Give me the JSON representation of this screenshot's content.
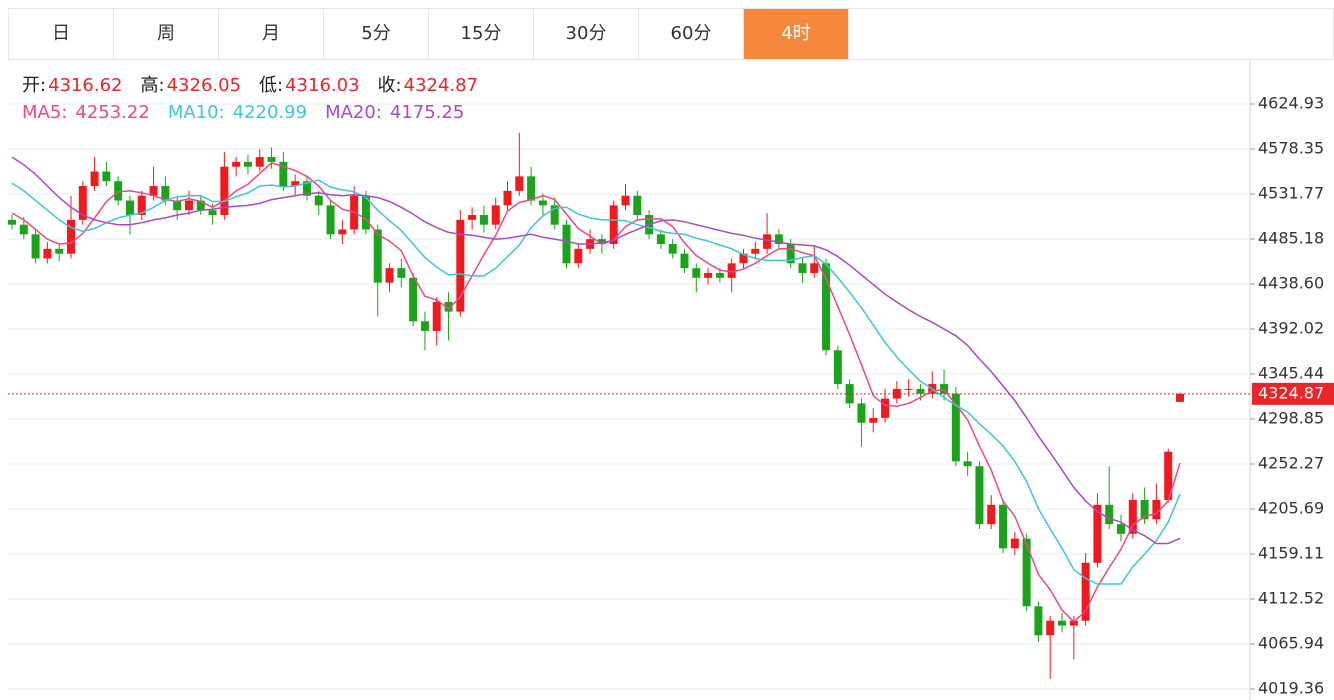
{
  "tabs": {
    "items": [
      "日",
      "周",
      "月",
      "5分",
      "15分",
      "30分",
      "60分",
      "4时"
    ],
    "active": 7
  },
  "chart_data": {
    "type": "candlestick",
    "ohlc_labels": [
      "开:",
      "高:",
      "低:",
      "收:"
    ],
    "up_color": "#f0191e",
    "down_color": "#1ca31c",
    "last_color": "#e8262a",
    "ylim": [
      4007.97,
      4670.47
    ],
    "yticks": [
      4624.93,
      4578.35,
      4531.77,
      4485.18,
      {
        "value": 4438.6,
        "label": "4438.60"
      },
      4392.02,
      4345.44,
      4298.85,
      4252.27,
      4205.69,
      4159.11,
      4112.52,
      4065.94,
      4019.36
    ],
    "grid": true,
    "ohlc": [
      [
        4505,
        4510,
        4495,
        4500
      ],
      [
        4500,
        4508,
        4485,
        4490
      ],
      [
        4490,
        4495,
        4460,
        4465
      ],
      [
        4465,
        4482,
        4460,
        4475
      ],
      [
        4475,
        4480,
        4462,
        4470
      ],
      [
        4470,
        4530,
        4465,
        4505
      ],
      [
        4505,
        4545,
        4500,
        4540
      ],
      [
        4540,
        4570,
        4535,
        4555
      ],
      [
        4555,
        4565,
        4540,
        4545
      ],
      [
        4545,
        4550,
        4520,
        4525
      ],
      [
        4525,
        4530,
        4490,
        4510
      ],
      [
        4510,
        4535,
        4505,
        4530
      ],
      [
        4530,
        4560,
        4525,
        4540
      ],
      [
        4540,
        4550,
        4520,
        4525
      ],
      [
        4525,
        4530,
        4505,
        4515
      ],
      [
        4515,
        4535,
        4510,
        4525
      ],
      [
        4525,
        4530,
        4510,
        4515
      ],
      [
        4515,
        4522,
        4500,
        4510
      ],
      [
        4510,
        4575,
        4505,
        4560
      ],
      [
        4560,
        4570,
        4550,
        4565
      ],
      [
        4565,
        4572,
        4552,
        4560
      ],
      [
        4560,
        4578,
        4555,
        4570
      ],
      [
        4570,
        4580,
        4558,
        4565
      ],
      [
        4565,
        4575,
        4535,
        4540
      ],
      [
        4540,
        4552,
        4530,
        4545
      ],
      [
        4545,
        4550,
        4525,
        4530
      ],
      [
        4530,
        4535,
        4510,
        4520
      ],
      [
        4520,
        4525,
        4485,
        4490
      ],
      [
        4490,
        4505,
        4480,
        4495
      ],
      [
        4495,
        4540,
        4490,
        4530
      ],
      [
        4530,
        4535,
        4490,
        4495
      ],
      [
        4495,
        4500,
        4405,
        4440
      ],
      [
        4440,
        4460,
        4430,
        4455
      ],
      [
        4455,
        4465,
        4435,
        4445
      ],
      [
        4445,
        4450,
        4395,
        4400
      ],
      [
        4400,
        4410,
        4370,
        4390
      ],
      [
        4390,
        4425,
        4375,
        4420
      ],
      [
        4420,
        4430,
        4380,
        4410
      ],
      [
        4410,
        4515,
        4405,
        4505
      ],
      [
        4505,
        4518,
        4495,
        4510
      ],
      [
        4510,
        4520,
        4492,
        4500
      ],
      [
        4500,
        4528,
        4495,
        4520
      ],
      [
        4520,
        4545,
        4515,
        4535
      ],
      [
        4535,
        4595,
        4530,
        4550
      ],
      [
        4550,
        4560,
        4520,
        4525
      ],
      [
        4525,
        4532,
        4510,
        4520
      ],
      [
        4520,
        4528,
        4495,
        4500
      ],
      [
        4500,
        4505,
        4455,
        4460
      ],
      [
        4460,
        4480,
        4455,
        4475
      ],
      [
        4475,
        4495,
        4470,
        4485
      ],
      [
        4485,
        4490,
        4470,
        4480
      ],
      [
        4480,
        4525,
        4475,
        4520
      ],
      [
        4520,
        4542,
        4515,
        4530
      ],
      [
        4530,
        4535,
        4505,
        4510
      ],
      [
        4510,
        4515,
        4485,
        4490
      ],
      [
        4490,
        4495,
        4475,
        4480
      ],
      [
        4480,
        4485,
        4465,
        4470
      ],
      [
        4470,
        4475,
        4450,
        4455
      ],
      [
        4455,
        4460,
        4430,
        4445
      ],
      [
        4445,
        4455,
        4438,
        4450
      ],
      [
        4450,
        4455,
        4440,
        4445
      ],
      [
        4445,
        4465,
        4430,
        4460
      ],
      [
        4460,
        4475,
        4455,
        4470
      ],
      [
        4470,
        4482,
        4465,
        4475
      ],
      [
        4475,
        4512,
        4470,
        4490
      ],
      [
        4490,
        4495,
        4475,
        4480
      ],
      [
        4480,
        4485,
        4455,
        4460
      ],
      [
        4460,
        4465,
        4440,
        4450
      ],
      [
        4450,
        4478,
        4445,
        4460
      ],
      [
        4460,
        4465,
        4365,
        4370
      ],
      [
        4370,
        4375,
        4330,
        4335
      ],
      [
        4335,
        4340,
        4310,
        4315
      ],
      [
        4315,
        4320,
        4270,
        4295
      ],
      [
        4295,
        4310,
        4285,
        4300
      ],
      [
        4300,
        4330,
        4295,
        4320
      ],
      [
        4320,
        4338,
        4315,
        4330
      ],
      [
        4330,
        4340,
        4322,
        4330
      ],
      [
        4330,
        4335,
        4318,
        4325
      ],
      [
        4325,
        4348,
        4320,
        4335
      ],
      [
        4335,
        4350,
        4318,
        4325
      ],
      [
        4325,
        4332,
        4250,
        4255
      ],
      [
        4255,
        4265,
        4240,
        4250
      ],
      [
        4250,
        4255,
        4185,
        4190
      ],
      [
        4190,
        4220,
        4185,
        4210
      ],
      [
        4210,
        4215,
        4160,
        4165
      ],
      [
        4165,
        4182,
        4158,
        4175
      ],
      [
        4175,
        4180,
        4100,
        4105
      ],
      [
        4105,
        4110,
        4068,
        4075
      ],
      [
        4075,
        4095,
        4030,
        4090
      ],
      [
        4090,
        4098,
        4078,
        4085
      ],
      [
        4085,
        4095,
        4050,
        4090
      ],
      [
        4090,
        4160,
        4085,
        4150
      ],
      [
        4150,
        4222,
        4145,
        4210
      ],
      [
        4210,
        4250,
        4185,
        4190
      ],
      [
        4190,
        4200,
        4172,
        4180
      ],
      [
        4180,
        4222,
        4175,
        4215
      ],
      [
        4215,
        4228,
        4190,
        4195
      ],
      [
        4195,
        4232,
        4190,
        4215
      ],
      [
        4215,
        4268,
        4212,
        4265
      ],
      [
        4316.62,
        4326.05,
        4316.03,
        4324.87
      ]
    ],
    "series": [
      {
        "name": "MA5:",
        "color": "#ea4a86",
        "values": [
          4512,
          4505,
          4495,
          4485,
          4480,
          4481,
          4491,
          4507,
          4524,
          4534,
          4535,
          4533,
          4530,
          4526,
          4524,
          4527,
          4524,
          4518,
          4525,
          4535,
          4542,
          4553,
          4564,
          4560,
          4556,
          4550,
          4540,
          4525,
          4516,
          4513,
          4506,
          4490,
          4483,
          4473,
          4447,
          4426,
          4422,
          4413,
          4425,
          4447,
          4469,
          4489,
          4514,
          4523,
          4526,
          4530,
          4526,
          4511,
          4496,
          4488,
          4480,
          4484,
          4498,
          4505,
          4506,
          4506,
          4498,
          4481,
          4468,
          4460,
          4453,
          4451,
          4454,
          4460,
          4468,
          4475,
          4475,
          4471,
          4468,
          4444,
          4415,
          4386,
          4355,
          4323,
          4313,
          4312,
          4315,
          4321,
          4328,
          4329,
          4314,
          4298,
          4271,
          4246,
          4214,
          4198,
          4169,
          4138,
          4122,
          4101,
          4089,
          4100,
          4125,
          4145,
          4164,
          4189,
          4198,
          4201,
          4214,
          4253.22
        ]
      },
      {
        "name": "MA10:",
        "color": "#3ec6d6",
        "values": [
          4543,
          4535,
          4525,
          4515,
          4505,
          4497,
          4493,
          4496,
          4502,
          4507,
          4510,
          4512,
          4518,
          4525,
          4529,
          4530,
          4530,
          4524,
          4524,
          4529,
          4533,
          4540,
          4541,
          4539,
          4540,
          4543,
          4546,
          4539,
          4536,
          4534,
          4528,
          4515,
          4504,
          4494,
          4480,
          4466,
          4456,
          4448,
          4449,
          4447,
          4447,
          4455,
          4467,
          4479,
          4497,
          4509,
          4517,
          4518,
          4511,
          4507,
          4505,
          4505,
          4504,
          4500,
          4497,
          4493,
          4491,
          4490,
          4486,
          4483,
          4479,
          4475,
          4469,
          4465,
          4463,
          4463,
          4463,
          4466,
          4468,
          4459,
          4445,
          4430,
          4414,
          4396,
          4378,
          4363,
          4350,
          4338,
          4330,
          4321,
          4313,
          4306,
          4294,
          4283,
          4271,
          4255,
          4234,
          4206,
          4185,
          4165,
          4143,
          4134,
          4128,
          4128,
          4128,
          4146,
          4159,
          4173,
          4192,
          4220.99
        ]
      },
      {
        "name": "MA20:",
        "color": "#a84bc2",
        "values": [
          4570,
          4562,
          4552,
          4540,
          4528,
          4518,
          4510,
          4505,
          4502,
          4500,
          4500,
          4502,
          4505,
          4507,
          4510,
          4512,
          4515,
          4516,
          4518,
          4519,
          4520,
          4522,
          4526,
          4528,
          4530,
          4532,
          4533,
          4531,
          4530,
          4531,
          4530,
          4528,
          4524,
          4518,
          4511,
          4503,
          4497,
          4492,
          4490,
          4489,
          4487,
          4485,
          4486,
          4488,
          4490,
          4487,
          4485,
          4483,
          4480,
          4480,
          4481,
          4484,
          4490,
          4495,
          4500,
          4504,
          4505,
          4503,
          4500,
          4497,
          4494,
          4491,
          4489,
          4486,
          4484,
          4482,
          4480,
          4479,
          4478,
          4474,
          4467,
          4458,
          4448,
          4438,
          4428,
          4420,
          4412,
          4405,
          4399,
          4392,
          4385,
          4375,
          4361,
          4348,
          4333,
          4318,
          4300,
          4281,
          4264,
          4246,
          4228,
          4214,
          4203,
          4196,
          4192,
          4184,
          4178,
          4170,
          4170,
          4175.25
        ]
      }
    ]
  }
}
